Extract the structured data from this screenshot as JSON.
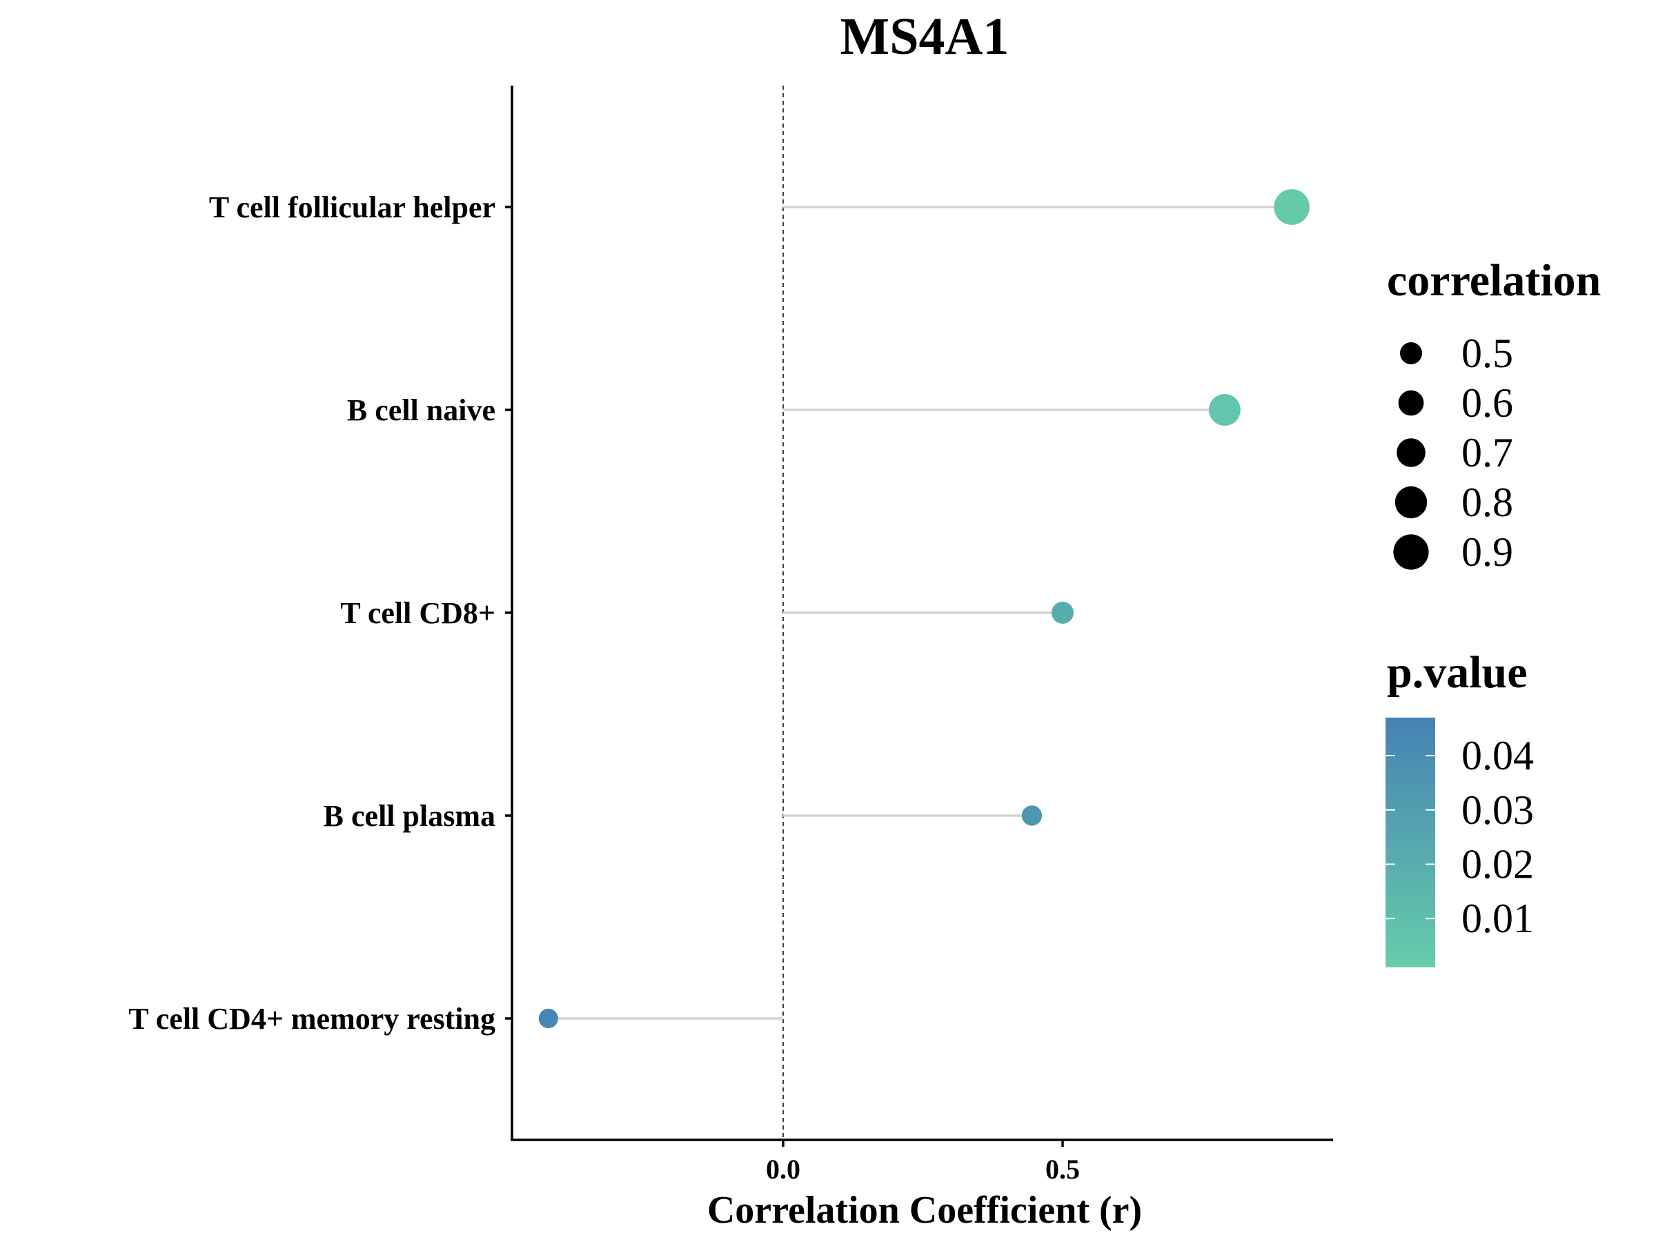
{
  "chart_data": {
    "type": "lollipop",
    "title": "MS4A1",
    "xlabel": "Correlation Coefficient (r)",
    "ylabel": "",
    "xlim": [
      -0.43,
      1.0
    ],
    "x_ticks": [
      {
        "value": 0.0,
        "label": "0.0"
      },
      {
        "value": 0.5,
        "label": "0.5"
      }
    ],
    "reference_line": {
      "x": 0,
      "style": "dashed"
    },
    "categories": [
      "T cell follicular helper",
      "B cell naive",
      "T cell CD8+",
      "B cell plasma",
      "T cell CD4+ memory resting"
    ],
    "points": [
      {
        "category": "T cell follicular helper",
        "correlation": 0.91,
        "p_value": 0.003
      },
      {
        "category": "B cell naive",
        "correlation": 0.79,
        "p_value": 0.006
      },
      {
        "category": "T cell CD8+",
        "correlation": 0.5,
        "p_value": 0.021
      },
      {
        "category": "B cell plasma",
        "correlation": 0.445,
        "p_value": 0.035
      },
      {
        "category": "T cell CD4+ memory resting",
        "correlation": -0.42,
        "p_value": 0.045
      }
    ],
    "grid": false,
    "legend_position": "right",
    "size_legend": {
      "title": "correlation",
      "values": [
        {
          "value": 0.5,
          "label": "0.5"
        },
        {
          "value": 0.6,
          "label": "0.6"
        },
        {
          "value": 0.7,
          "label": "0.7"
        },
        {
          "value": 0.8,
          "label": "0.8"
        },
        {
          "value": 0.9,
          "label": "0.9"
        }
      ]
    },
    "color_legend": {
      "title": "p.value",
      "low_color": "#66CDAA",
      "high_color": "#4682B4",
      "range": [
        0.001,
        0.047
      ],
      "ticks": [
        {
          "value": 0.04,
          "label": "0.04"
        },
        {
          "value": 0.03,
          "label": "0.03"
        },
        {
          "value": 0.02,
          "label": "0.02"
        },
        {
          "value": 0.01,
          "label": "0.01"
        }
      ]
    },
    "colors": {
      "segment": "#D3D3D3",
      "axis": "#000000",
      "size_legend_marker": "#000000"
    }
  }
}
